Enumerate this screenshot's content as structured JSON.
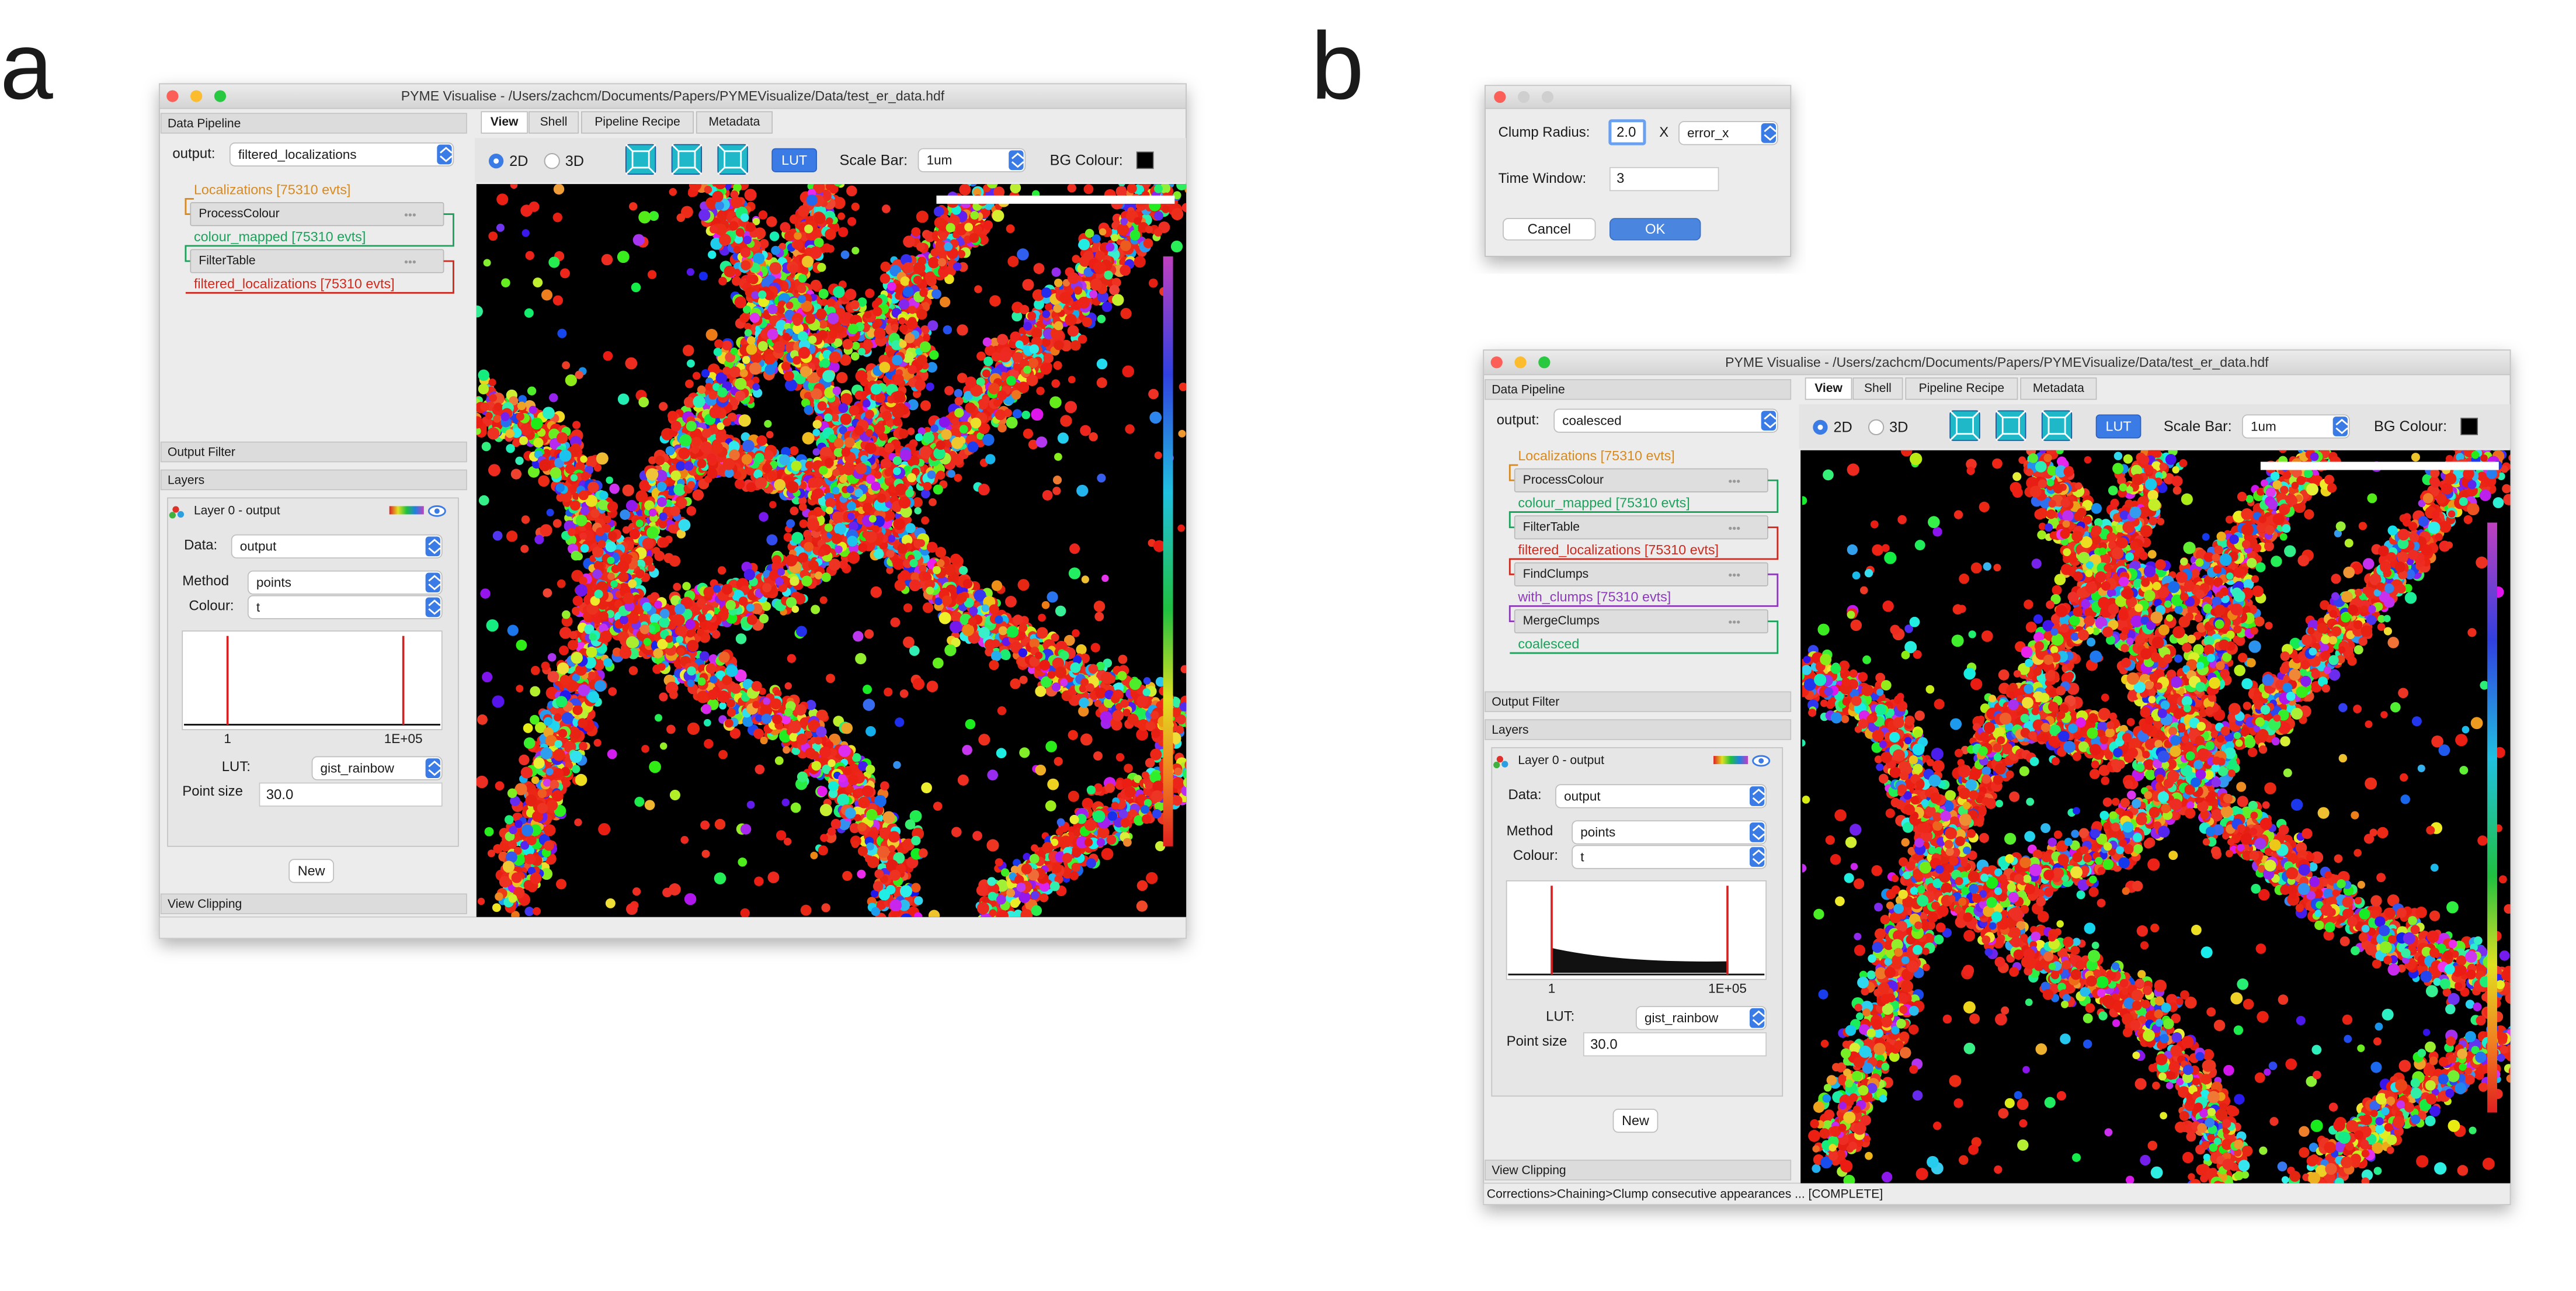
{
  "panel_a": {
    "label": "a",
    "window_title": "PYME Visualise - /Users/zachcm/Documents/Papers/PYMEVisualize/Data/test_er_data.hdf",
    "pipeline_header": "Data Pipeline",
    "output_label": "output:",
    "output_value": "filtered_localizations",
    "pipeline": [
      "Localizations [75310 evts]",
      "ProcessColour",
      "colour_mapped [75310 evts]",
      "FilterTable",
      "filtered_localizations [75310 evts]"
    ],
    "output_filter": "Output Filter",
    "layers_header": "Layers",
    "layer_title": "Layer 0 - output",
    "data_label": "Data:",
    "data_value": "output",
    "method_label": "Method",
    "method_value": "points",
    "colour_label": "Colour:",
    "colour_value": "t",
    "hist_min": "1",
    "hist_max": "1E+05",
    "lut_label": "LUT:",
    "lut_value": "gist_rainbow",
    "point_size_label": "Point size",
    "point_size_value": "30.0",
    "new_button": "New",
    "view_clipping": "View Clipping",
    "tabs": [
      "View",
      "Shell",
      "Pipeline Recipe",
      "Metadata"
    ],
    "mode_2d": "2D",
    "mode_3d": "3D",
    "lut_button": "LUT",
    "scale_bar_label": "Scale Bar:",
    "scale_bar_value": "1um",
    "bg_colour_label": "BG Colour:"
  },
  "panel_b": {
    "label": "b",
    "window_title": "PYME Visualise - /Users/zachcm/Documents/Papers/PYMEVisualize/Data/test_er_data.hdf",
    "pipeline_header": "Data Pipeline",
    "output_label": "output:",
    "output_value": "coalesced",
    "pipeline": [
      "Localizations [75310 evts]",
      "ProcessColour",
      "colour_mapped [75310 evts]",
      "FilterTable",
      "filtered_localizations [75310 evts]",
      "FindClumps",
      "with_clumps [75310 evts]",
      "MergeClumps",
      "coalesced"
    ],
    "output_filter": "Output Filter",
    "layers_header": "Layers",
    "layer_title": "Layer 0 - output",
    "data_label": "Data:",
    "data_value": "output",
    "method_label": "Method",
    "method_value": "points",
    "colour_label": "Colour:",
    "colour_value": "t",
    "hist_min": "1",
    "hist_max": "1E+05",
    "lut_label": "LUT:",
    "lut_value": "gist_rainbow",
    "point_size_label": "Point size",
    "point_size_value": "30.0",
    "new_button": "New",
    "view_clipping": "View Clipping",
    "tabs": [
      "View",
      "Shell",
      "Pipeline Recipe",
      "Metadata"
    ],
    "mode_2d": "2D",
    "mode_3d": "3D",
    "lut_button": "LUT",
    "scale_bar_label": "Scale Bar:",
    "scale_bar_value": "1um",
    "bg_colour_label": "BG Colour:",
    "status": "Corrections>Chaining>Clump consecutive appearances ... [COMPLETE]"
  },
  "dialog": {
    "clump_radius_label": "Clump Radius:",
    "clump_radius_value": "2.0",
    "times": "X",
    "clump_radius_unit": "error_x",
    "time_window_label": "Time Window:",
    "time_window_value": "3",
    "cancel": "Cancel",
    "ok": "OK"
  }
}
